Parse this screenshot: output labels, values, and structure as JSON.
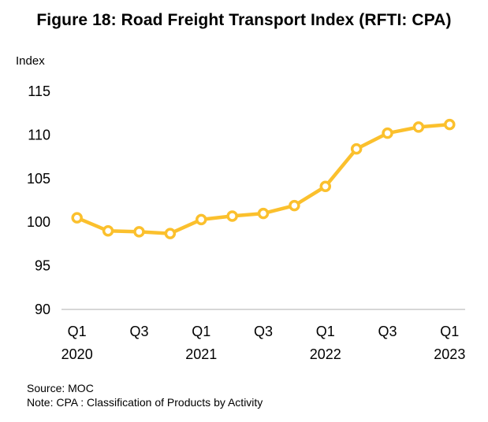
{
  "chart_data": {
    "type": "line",
    "title": "Figure 18: Road Freight Transport Index (RFTI: CPA)",
    "ylabel": "Index",
    "ylim": [
      90,
      115
    ],
    "yticks": [
      90,
      95,
      100,
      105,
      110,
      115
    ],
    "x": [
      "Q1 2020",
      "Q2 2020",
      "Q3 2020",
      "Q4 2020",
      "Q1 2021",
      "Q2 2021",
      "Q3 2021",
      "Q4 2021",
      "Q1 2022",
      "Q2 2022",
      "Q3 2022",
      "Q4 2022",
      "Q1 2023"
    ],
    "xtick_labels": [
      {
        "index": 0,
        "quarter": "Q1",
        "year": "2020"
      },
      {
        "index": 2,
        "quarter": "Q3",
        "year": ""
      },
      {
        "index": 4,
        "quarter": "Q1",
        "year": "2021"
      },
      {
        "index": 6,
        "quarter": "Q3",
        "year": ""
      },
      {
        "index": 8,
        "quarter": "Q1",
        "year": "2022"
      },
      {
        "index": 10,
        "quarter": "Q3",
        "year": ""
      },
      {
        "index": 12,
        "quarter": "Q1",
        "year": "2023"
      }
    ],
    "series": [
      {
        "values": [
          100.5,
          99.0,
          98.9,
          98.7,
          100.3,
          100.7,
          101.0,
          101.9,
          104.1,
          108.4,
          110.2,
          110.9,
          111.2
        ]
      }
    ],
    "grid": false,
    "legend": "none",
    "colors": {
      "line": "#FBC02D",
      "marker_fill": "#FFFFFF",
      "axis": "#BFBFBF"
    }
  },
  "footer": {
    "source": "Source: MOC",
    "note": "Note: CPA : Classification of Products by Activity"
  }
}
